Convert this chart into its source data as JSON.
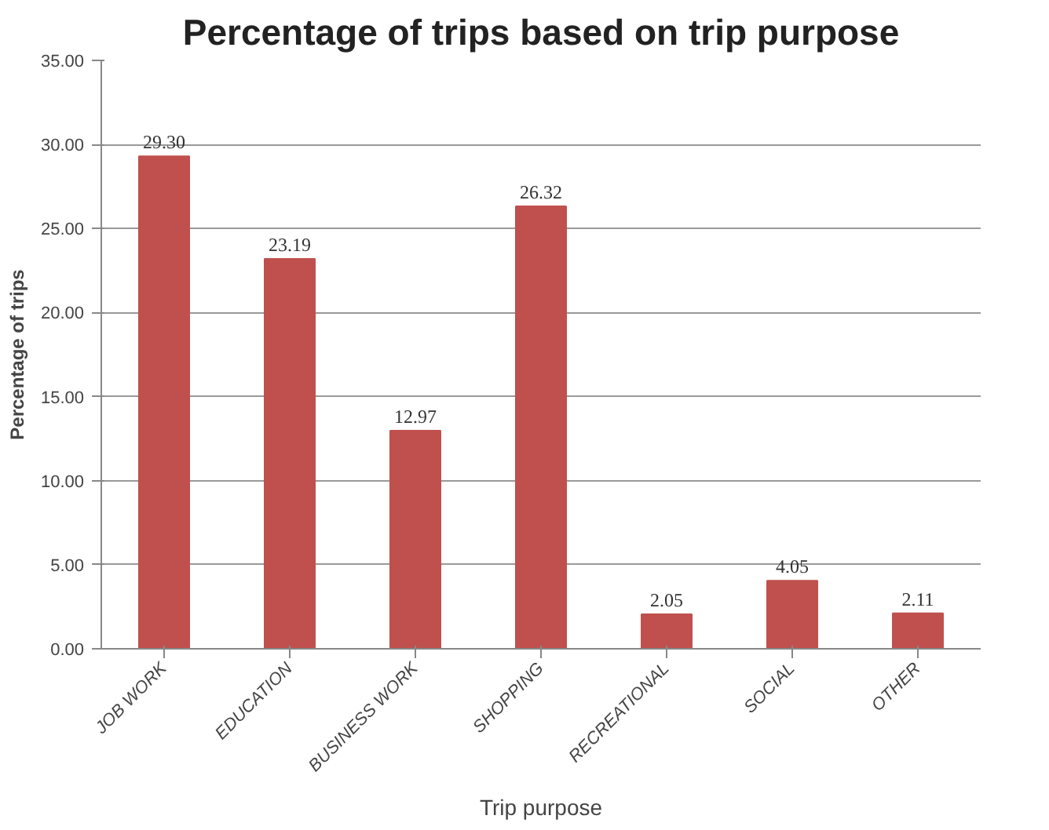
{
  "chart_data": {
    "type": "bar",
    "title": "Percentage of trips based on trip purpose",
    "xlabel": "Trip purpose",
    "ylabel": "Percentage of trips",
    "categories": [
      "JOB WORK",
      "EDUCATION",
      "BUSINESS WORK",
      "SHOPPING",
      "RECREATIONAL",
      "SOCIAL",
      "OTHER"
    ],
    "values": [
      29.3,
      23.19,
      12.97,
      26.32,
      2.05,
      4.05,
      2.11
    ],
    "value_labels": [
      "29.30",
      "23.19",
      "12.97",
      "26.32",
      "2.05",
      "4.05",
      "2.11"
    ],
    "color": "#c0504d",
    "ylim": [
      0,
      35
    ],
    "yticks": [
      {
        "value": 0,
        "label": "0.00"
      },
      {
        "value": 5,
        "label": "5.00"
      },
      {
        "value": 10,
        "label": "10.00"
      },
      {
        "value": 15,
        "label": "15.00"
      },
      {
        "value": 20,
        "label": "20.00"
      },
      {
        "value": 25,
        "label": "25.00"
      },
      {
        "value": 30,
        "label": "30.00"
      },
      {
        "value": 35,
        "label": "35.00"
      }
    ],
    "grid": "y"
  }
}
